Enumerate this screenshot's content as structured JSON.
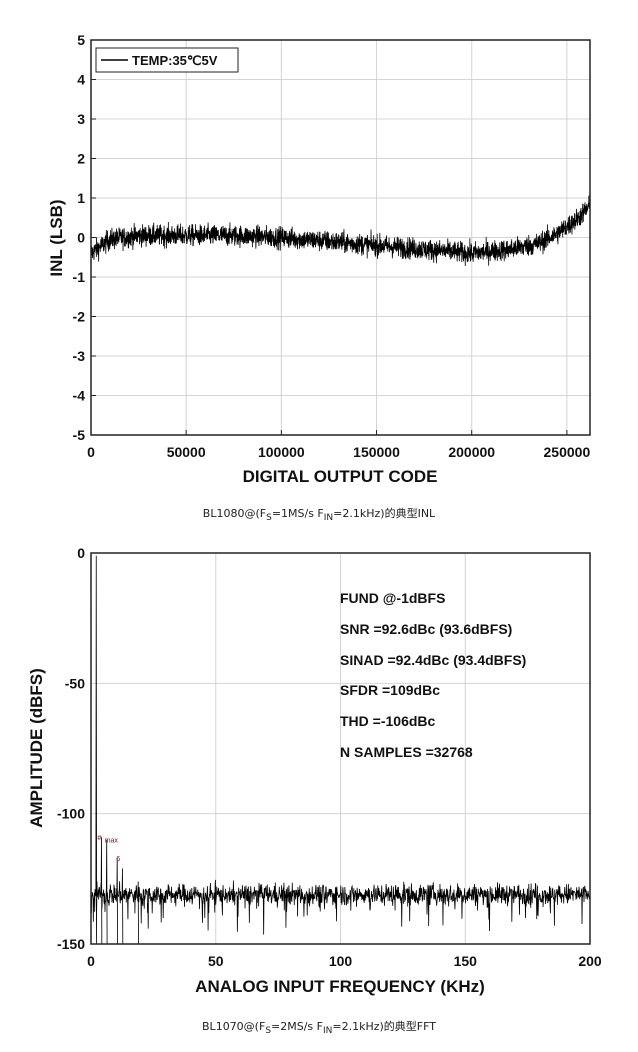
{
  "inl_chart": {
    "caption": {
      "prefix": "BL1080@(F",
      "sub1": "S",
      "mid": "=1MS/s F",
      "sub2": "IN",
      "suffix": "=2.1kHz)的典型INL"
    },
    "chart_data": {
      "type": "line",
      "title": "",
      "xlabel": "DIGITAL OUTPUT CODE",
      "ylabel": "INL (LSB)",
      "xlim": [
        0,
        262144
      ],
      "ylim": [
        -5,
        5
      ],
      "xticks": [
        0,
        50000,
        100000,
        150000,
        200000,
        250000
      ],
      "yticks": [
        5,
        4,
        3,
        2,
        1,
        0,
        -1,
        -2,
        -3,
        -4,
        -5
      ],
      "grid": true,
      "legend": {
        "entries": [
          "TEMP:35℃5V"
        ],
        "placement": "top-left"
      },
      "series": [
        {
          "name": "TEMP:35℃5V",
          "color": "#000000",
          "envelope_center": {
            "x": [
              0,
              10000,
              25000,
              50000,
              75000,
              100000,
              125000,
              150000,
              175000,
              200000,
              220000,
              235000,
              245000,
              255000,
              262144
            ],
            "y": [
              -0.4,
              -0.05,
              0.05,
              0.05,
              0.05,
              0.0,
              -0.1,
              -0.2,
              -0.3,
              -0.4,
              -0.3,
              -0.15,
              0.1,
              0.45,
              0.8
            ]
          },
          "envelope_halfwidth_lsb": 0.4
        }
      ]
    }
  },
  "fft_chart": {
    "caption": {
      "prefix": "BL1070@(F",
      "sub1": "S",
      "mid": "=2MS/s F",
      "sub2": "IN",
      "suffix": "=2.1kHz)的典型FFT"
    },
    "annotations": {
      "line1": "FUND @-1dBFS",
      "line2": "SNR =92.6dBc (93.6dBFS)",
      "line3": "SINAD =92.4dBc (93.4dBFS)",
      "line4": "SFDR =109dBc",
      "line5": "THD =-106dBc",
      "line6": "N SAMPLES =32768"
    },
    "harmonic_markers": [
      "#",
      "max",
      "6"
    ],
    "chart_data": {
      "type": "line",
      "title": "",
      "xlabel": "ANALOG INPUT FREQUENCY (KHz)",
      "ylabel": "AMPLITUDE (dBFS)",
      "xlim": [
        0,
        200
      ],
      "ylim": [
        -150,
        0
      ],
      "xticks": [
        0,
        50,
        100,
        150,
        200
      ],
      "yticks": [
        0,
        -50,
        -100,
        -150
      ],
      "grid": true,
      "series": [
        {
          "color": "#000000",
          "fundamental": {
            "x": 2.1,
            "y": -1
          },
          "spurs": [
            {
              "x": 4.2,
              "y": -109
            },
            {
              "x": 6.3,
              "y": -110
            },
            {
              "x": 10.5,
              "y": -117
            },
            {
              "x": 12.6,
              "y": -121
            },
            {
              "x": 18.9,
              "y": -126
            }
          ],
          "noise_floor_db": -131,
          "noise_spread_db": 7
        }
      ]
    }
  }
}
